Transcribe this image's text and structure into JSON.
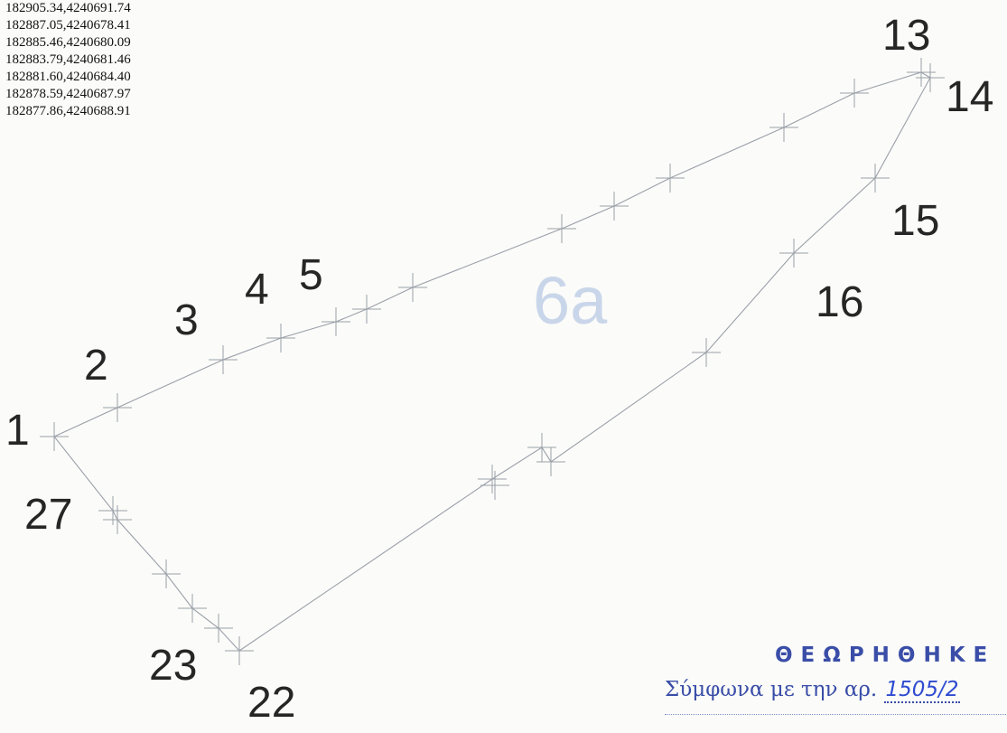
{
  "coordinates": [
    "182905.34,4240691.74",
    "182887.05,4240678.41",
    "182885.46,4240680.09",
    "182883.79,4240681.46",
    "182881.60,4240684.40",
    "182878.59,4240687.97",
    "182877.86,4240688.91"
  ],
  "parcel_label": "6a",
  "point_labels": [
    "1",
    "2",
    "3",
    "4",
    "5",
    "13",
    "14",
    "15",
    "16",
    "22",
    "23",
    "27"
  ],
  "stamp": {
    "title": "ΘΕΩΡΗΘΗΚΕ",
    "line_text": "Σύμφωνα με την αρ.",
    "line_number": "1505/2"
  },
  "colors": {
    "outline": "#9aa0a8",
    "labels": "#262626",
    "parcel_label": "#c9d6ea",
    "stamp": "#3a4ea8"
  }
}
